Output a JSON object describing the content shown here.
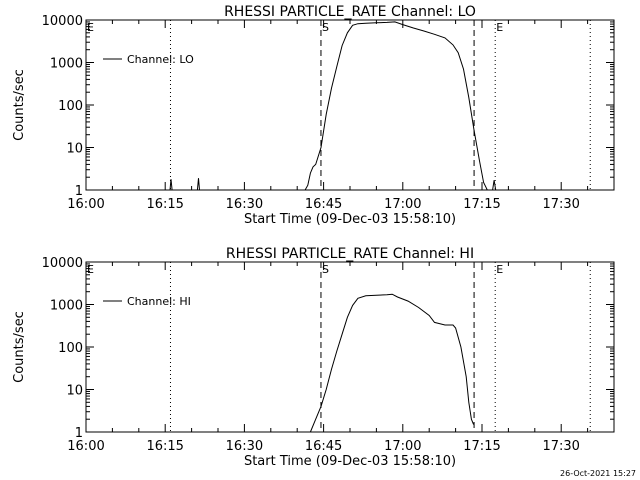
{
  "footer": {
    "timestamp": "26-Oct-2021 15:27"
  },
  "chart_data": [
    {
      "type": "line",
      "title": "RHESSI PARTICLE_RATE Channel: LO",
      "xlabel": "Start Time (09-Dec-03 15:58:10)",
      "ylabel": "Counts/sec",
      "y_scale": "log",
      "xlim_minutes": [
        0,
        100
      ],
      "ylim": [
        1,
        10000
      ],
      "x_ticks": [
        {
          "label": "16:00",
          "minutes": 0
        },
        {
          "label": "16:15",
          "minutes": 15
        },
        {
          "label": "16:30",
          "minutes": 30
        },
        {
          "label": "16:45",
          "minutes": 45
        },
        {
          "label": "17:00",
          "minutes": 60
        },
        {
          "label": "17:15",
          "minutes": 75
        },
        {
          "label": "17:30",
          "minutes": 90
        }
      ],
      "y_ticks": [
        {
          "label": "1",
          "value": 1
        },
        {
          "label": "10",
          "value": 10
        },
        {
          "label": "100",
          "value": 100
        },
        {
          "label": "1000",
          "value": 1000
        },
        {
          "label": "10000",
          "value": 10000
        }
      ],
      "legend": {
        "position": "top-left",
        "label": "Channel: LO"
      },
      "markers": [
        {
          "label": "E",
          "minutes": 0,
          "style": "dotted"
        },
        {
          "label": "",
          "minutes": 16,
          "style": "dotted"
        },
        {
          "label": "S",
          "minutes": 44.5,
          "style": "dashed"
        },
        {
          "label": "",
          "minutes": 73.5,
          "style": "dashed"
        },
        {
          "label": "E",
          "minutes": 77.5,
          "style": "dotted"
        },
        {
          "label": "",
          "minutes": 95.5,
          "style": "dotted"
        }
      ],
      "series": [
        {
          "name": "Channel: LO",
          "points": [
            [
              15.9,
              1
            ],
            [
              16.1,
              1.8
            ],
            [
              16.3,
              1
            ],
            [
              21.1,
              1
            ],
            [
              21.3,
              1.9
            ],
            [
              21.5,
              1
            ],
            [
              41.5,
              1
            ],
            [
              42.0,
              1.3
            ],
            [
              42.5,
              2.5
            ],
            [
              43.0,
              3.5
            ],
            [
              43.5,
              4.0
            ],
            [
              44.5,
              10
            ],
            [
              45.5,
              60
            ],
            [
              46.5,
              250
            ],
            [
              47.5,
              800
            ],
            [
              48.5,
              2500
            ],
            [
              49.5,
              5000
            ],
            [
              50.5,
              7500
            ],
            [
              51.5,
              8200
            ],
            [
              53.0,
              8400
            ],
            [
              55.0,
              8600
            ],
            [
              57.0,
              8800
            ],
            [
              58.5,
              9000
            ],
            [
              60.0,
              7800
            ],
            [
              62.0,
              6500
            ],
            [
              64.0,
              5500
            ],
            [
              66.0,
              4600
            ],
            [
              68.0,
              3800
            ],
            [
              69.5,
              2600
            ],
            [
              70.5,
              1700
            ],
            [
              71.5,
              700
            ],
            [
              72.5,
              150
            ],
            [
              73.5,
              25
            ],
            [
              74.5,
              5
            ],
            [
              75.3,
              1.5
            ],
            [
              76.0,
              1
            ],
            [
              77.0,
              1
            ],
            [
              77.3,
              1.7
            ],
            [
              77.6,
              1
            ]
          ]
        }
      ]
    },
    {
      "type": "line",
      "title": "RHESSI PARTICLE_RATE Channel: HI",
      "xlabel": "Start Time (09-Dec-03 15:58:10)",
      "ylabel": "Counts/sec",
      "y_scale": "log",
      "xlim_minutes": [
        0,
        100
      ],
      "ylim": [
        1,
        10000
      ],
      "x_ticks": [
        {
          "label": "16:00",
          "minutes": 0
        },
        {
          "label": "16:15",
          "minutes": 15
        },
        {
          "label": "16:30",
          "minutes": 30
        },
        {
          "label": "16:45",
          "minutes": 45
        },
        {
          "label": "17:00",
          "minutes": 60
        },
        {
          "label": "17:15",
          "minutes": 75
        },
        {
          "label": "17:30",
          "minutes": 90
        }
      ],
      "y_ticks": [
        {
          "label": "1",
          "value": 1
        },
        {
          "label": "10",
          "value": 10
        },
        {
          "label": "100",
          "value": 100
        },
        {
          "label": "1000",
          "value": 1000
        },
        {
          "label": "10000",
          "value": 10000
        }
      ],
      "legend": {
        "position": "top-left",
        "label": "Channel: HI"
      },
      "markers": [
        {
          "label": "E",
          "minutes": 0,
          "style": "dotted"
        },
        {
          "label": "",
          "minutes": 16,
          "style": "dotted"
        },
        {
          "label": "S",
          "minutes": 44.5,
          "style": "dashed"
        },
        {
          "label": "",
          "minutes": 73.5,
          "style": "dashed"
        },
        {
          "label": "E",
          "minutes": 77.5,
          "style": "dotted"
        },
        {
          "label": "",
          "minutes": 95.5,
          "style": "dotted"
        }
      ],
      "series": [
        {
          "name": "Channel: HI",
          "points": [
            [
              42.5,
              1
            ],
            [
              43.5,
              2
            ],
            [
              44.5,
              4
            ],
            [
              45.5,
              10
            ],
            [
              46.5,
              30
            ],
            [
              47.5,
              80
            ],
            [
              48.5,
              200
            ],
            [
              49.5,
              500
            ],
            [
              50.5,
              950
            ],
            [
              51.5,
              1400
            ],
            [
              53.0,
              1600
            ],
            [
              55.0,
              1650
            ],
            [
              57.0,
              1700
            ],
            [
              58.0,
              1750
            ],
            [
              59.0,
              1500
            ],
            [
              61.0,
              1200
            ],
            [
              63.0,
              850
            ],
            [
              65.0,
              550
            ],
            [
              66.0,
              380
            ],
            [
              68.0,
              330
            ],
            [
              69.5,
              330
            ],
            [
              70.0,
              280
            ],
            [
              71.0,
              100
            ],
            [
              72.0,
              20
            ],
            [
              72.5,
              5
            ],
            [
              73.0,
              2
            ],
            [
              73.4,
              1.5
            ]
          ]
        }
      ]
    }
  ]
}
